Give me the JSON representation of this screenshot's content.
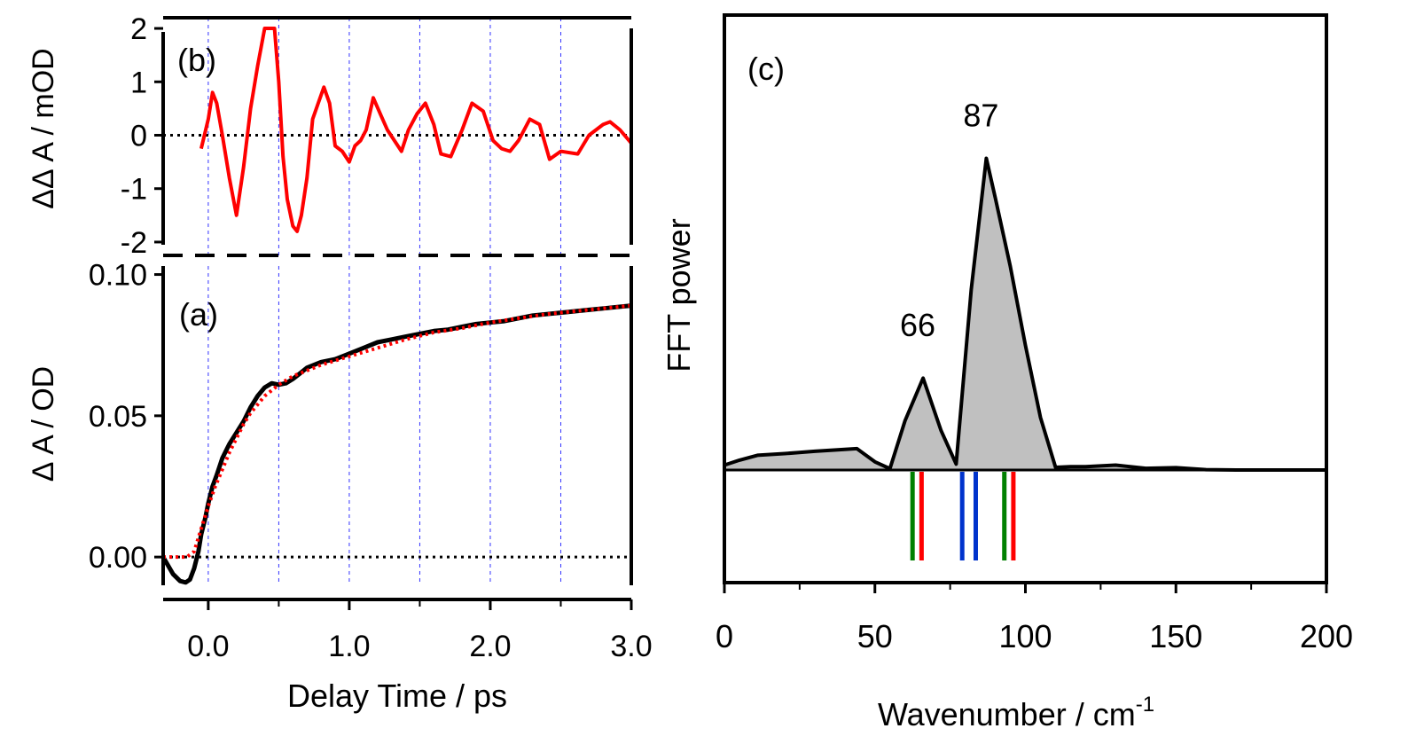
{
  "chart_data": [
    {
      "panel": "b",
      "type": "line",
      "panel_label": "(b)",
      "ylabel": "ΔΔ A / mOD",
      "ylim": [
        -2.25,
        2.2
      ],
      "xlim": [
        -0.32,
        3.0
      ],
      "yticks": [
        "-2",
        "-1",
        "0",
        "1",
        "2"
      ],
      "ytick_values": [
        -2,
        -1,
        0,
        1,
        2
      ],
      "grid": "vertical dashed blue lines",
      "zero_line": "dotted black",
      "colors": {
        "series": "#ff0000",
        "grid": "#3333ff"
      },
      "series": [
        {
          "x": [
            -0.05,
            0.0,
            0.03,
            0.06,
            0.1,
            0.15,
            0.2,
            0.25,
            0.3,
            0.35,
            0.4,
            0.44,
            0.47,
            0.5,
            0.53,
            0.56,
            0.6,
            0.63,
            0.66,
            0.7,
            0.74,
            0.78,
            0.82,
            0.86,
            0.9,
            0.95,
            1.0,
            1.04,
            1.08,
            1.12,
            1.17,
            1.22,
            1.27,
            1.32,
            1.37,
            1.42,
            1.48,
            1.54,
            1.6,
            1.65,
            1.72,
            1.8,
            1.87,
            1.95,
            2.02,
            2.08,
            2.14,
            2.2,
            2.28,
            2.35,
            2.42,
            2.5,
            2.62,
            2.7,
            2.8,
            2.85,
            2.92,
            3.0
          ],
          "y": [
            -0.25,
            0.3,
            0.8,
            0.6,
            0.0,
            -0.8,
            -1.5,
            -0.6,
            0.5,
            1.3,
            2.0,
            2.0,
            2.0,
            1.0,
            -0.4,
            -1.2,
            -1.7,
            -1.8,
            -1.5,
            -0.8,
            0.3,
            0.6,
            0.9,
            0.6,
            -0.2,
            -0.3,
            -0.5,
            -0.2,
            -0.1,
            0.1,
            0.7,
            0.4,
            0.1,
            -0.1,
            -0.3,
            0.1,
            0.4,
            0.6,
            0.2,
            -0.35,
            -0.4,
            0.1,
            0.6,
            0.45,
            -0.1,
            -0.25,
            -0.3,
            -0.1,
            0.3,
            0.2,
            -0.45,
            -0.3,
            -0.35,
            0.0,
            0.2,
            0.25,
            0.1,
            -0.15
          ]
        }
      ]
    },
    {
      "panel": "a",
      "type": "line",
      "panel_label": "(a)",
      "xlabel": "Delay Time / ps",
      "ylabel": "Δ A / OD",
      "xlim": [
        -0.32,
        3.0
      ],
      "ylim": [
        -0.01,
        0.103
      ],
      "xticks": [
        "0.0",
        "1.0",
        "2.0",
        "3.0"
      ],
      "xtick_values": [
        0,
        1,
        2,
        3
      ],
      "yticks": [
        "0.00",
        "0.05",
        "0.10"
      ],
      "ytick_values": [
        0,
        0.05,
        0.1
      ],
      "grid": "vertical dashed blue lines",
      "zero_line": "dotted black",
      "colors": {
        "data": "#000000",
        "fit": "#ff0000"
      },
      "series": [
        {
          "style": "solid",
          "x": [
            -0.32,
            -0.25,
            -0.2,
            -0.16,
            -0.13,
            -0.1,
            -0.07,
            -0.05,
            -0.02,
            0.0,
            0.03,
            0.06,
            0.1,
            0.15,
            0.2,
            0.25,
            0.3,
            0.35,
            0.4,
            0.45,
            0.5,
            0.55,
            0.6,
            0.65,
            0.7,
            0.8,
            0.9,
            1.0,
            1.1,
            1.2,
            1.3,
            1.4,
            1.5,
            1.6,
            1.7,
            1.8,
            1.9,
            2.0,
            2.1,
            2.2,
            2.3,
            2.4,
            2.5,
            2.6,
            2.7,
            2.8,
            2.9,
            3.0
          ],
          "y": [
            0.0,
            -0.006,
            -0.0085,
            -0.009,
            -0.008,
            -0.004,
            0.002,
            0.008,
            0.014,
            0.019,
            0.025,
            0.029,
            0.035,
            0.04,
            0.044,
            0.048,
            0.053,
            0.057,
            0.06,
            0.0615,
            0.061,
            0.0615,
            0.063,
            0.065,
            0.067,
            0.069,
            0.07,
            0.072,
            0.074,
            0.076,
            0.077,
            0.078,
            0.079,
            0.08,
            0.0805,
            0.0815,
            0.0825,
            0.083,
            0.0835,
            0.0845,
            0.0855,
            0.086,
            0.0865,
            0.087,
            0.0875,
            0.088,
            0.0885,
            0.089
          ]
        },
        {
          "style": "dotted",
          "x": [
            -0.32,
            -0.15,
            -0.1,
            -0.05,
            0.0,
            0.05,
            0.1,
            0.15,
            0.2,
            0.25,
            0.3,
            0.35,
            0.4,
            0.45,
            0.5,
            0.6,
            0.7,
            0.8,
            0.9,
            1.0,
            1.2,
            1.4,
            1.6,
            1.8,
            2.0,
            2.2,
            2.4,
            2.6,
            2.8,
            3.0
          ],
          "y": [
            0.0,
            0.0,
            0.002,
            0.01,
            0.018,
            0.025,
            0.031,
            0.037,
            0.042,
            0.047,
            0.051,
            0.054,
            0.057,
            0.059,
            0.061,
            0.064,
            0.066,
            0.068,
            0.0695,
            0.071,
            0.074,
            0.077,
            0.0795,
            0.081,
            0.083,
            0.0845,
            0.086,
            0.087,
            0.088,
            0.089
          ]
        }
      ]
    },
    {
      "panel": "c",
      "type": "area",
      "panel_label": "(c)",
      "xlabel": "Wavenumber / cm",
      "xlabel_superscript": "-1",
      "ylabel": "FFT power",
      "xlim": [
        0,
        200
      ],
      "ylim": [
        -0.12,
        1.08
      ],
      "xticks": [
        "0",
        "50",
        "100",
        "150",
        "200"
      ],
      "xtick_values": [
        0,
        50,
        100,
        150,
        200
      ],
      "colors": {
        "fill": "#c0c0c0",
        "line": "#000000"
      },
      "x": [
        0,
        5,
        11,
        20,
        30,
        40,
        44,
        50,
        55,
        60,
        66,
        72,
        77,
        82,
        87,
        90,
        95,
        100,
        105,
        110,
        115,
        120,
        130,
        140,
        150,
        160,
        170,
        180,
        190,
        200
      ],
      "y": [
        0.015,
        0.03,
        0.045,
        0.05,
        0.057,
        0.063,
        0.065,
        0.025,
        0.004,
        0.15,
        0.28,
        0.12,
        0.018,
        0.55,
        0.95,
        0.83,
        0.62,
        0.38,
        0.16,
        0.008,
        0.01,
        0.01,
        0.015,
        0.005,
        0.007,
        0.001,
        0.0,
        0.0,
        0.0,
        0.0
      ],
      "annotations": [
        {
          "text": "66",
          "x": 66,
          "y": 0.44
        },
        {
          "text": "87",
          "x": 87,
          "y": 1.08
        }
      ],
      "marker_lines": [
        {
          "x": 62.5,
          "color": "#008000"
        },
        {
          "x": 65.5,
          "color": "#ff0000"
        },
        {
          "x": 79,
          "color": "#0033cc"
        },
        {
          "x": 83.5,
          "color": "#0033cc"
        },
        {
          "x": 93,
          "color": "#008000"
        },
        {
          "x": 96,
          "color": "#ff0000"
        }
      ]
    }
  ]
}
